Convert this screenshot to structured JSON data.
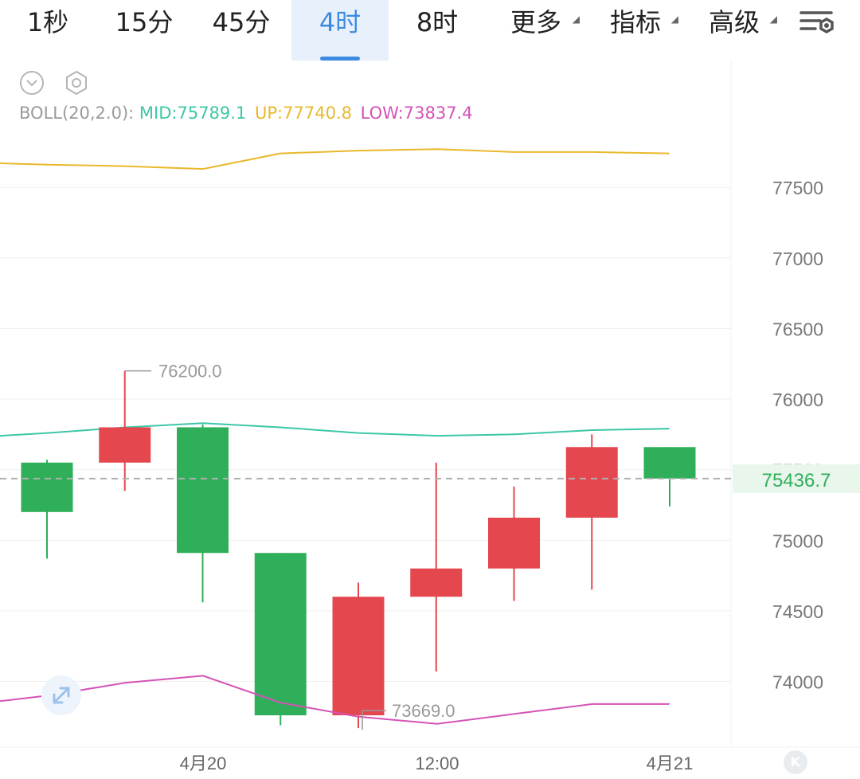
{
  "tabs": [
    {
      "label": "1秒",
      "active": false,
      "has_caret": false
    },
    {
      "label": "15分",
      "active": false,
      "has_caret": false
    },
    {
      "label": "45分",
      "active": false,
      "has_caret": false
    },
    {
      "label": "4时",
      "active": true,
      "has_caret": false
    },
    {
      "label": "8时",
      "active": false,
      "has_caret": false
    },
    {
      "label": "更多",
      "active": false,
      "has_caret": true
    },
    {
      "label": "指标",
      "active": false,
      "has_caret": true
    },
    {
      "label": "高级",
      "active": false,
      "has_caret": true
    }
  ],
  "icons": {
    "settings": "chart-settings-icon",
    "collapse": "chevron-down-circle-icon",
    "indicator_settings": "hexagon-gear-icon",
    "expand": "expand-arrows-icon",
    "k": "k-logo-icon"
  },
  "boll": {
    "name": "BOLL(20,2.0):",
    "mid_label": "MID:75789.1",
    "up_label": "UP:77740.8",
    "low_label": "LOW:73837.4"
  },
  "k_label": "K",
  "colors": {
    "up": "#e5474f",
    "down": "#2faf5a",
    "mid": "#3dc7a7",
    "upper": "#e9b82c",
    "lower": "#d453b8",
    "grid": "#f0f0f0",
    "axis_text": "#777777",
    "accent": "#3d8be0",
    "price_tag_bg": "#e8f6ec",
    "price_tag_text": "#2faf5a"
  },
  "chart_data": {
    "type": "candlestick",
    "ylim": [
      73500,
      78000
    ],
    "y_ticks": [
      74000,
      74500,
      75000,
      75500,
      76000,
      76500,
      77000,
      77500
    ],
    "x_tick_labels": [
      "4月20",
      "12:00",
      "4月21"
    ],
    "candles": [
      {
        "open": 75550,
        "high": 75570,
        "low": 74870,
        "close": 75200
      },
      {
        "open": 75550,
        "high": 76200,
        "low": 75350,
        "close": 75800
      },
      {
        "open": 75800,
        "high": 75820,
        "low": 74560,
        "close": 74910
      },
      {
        "open": 74910,
        "high": 74910,
        "low": 73690,
        "close": 73760
      },
      {
        "open": 73760,
        "high": 74700,
        "low": 73669,
        "close": 74600
      },
      {
        "open": 74600,
        "high": 75550,
        "low": 74070,
        "close": 74800
      },
      {
        "open": 74800,
        "high": 75380,
        "low": 74570,
        "close": 75160
      },
      {
        "open": 75160,
        "high": 75750,
        "low": 74650,
        "close": 75660
      },
      {
        "open": 75660,
        "high": 75660,
        "low": 75240,
        "close": 75436.7
      }
    ],
    "boll_mid": [
      75740,
      75760,
      75800,
      75830,
      75800,
      75760,
      75740,
      75750,
      75780,
      75790,
      75789.1
    ],
    "boll_upper": [
      77670,
      77660,
      77650,
      77630,
      77740,
      77760,
      77770,
      77750,
      77750,
      77740,
      77740.8
    ],
    "boll_lower": [
      73860,
      73900,
      73990,
      74040,
      73850,
      73750,
      73700,
      73770,
      73840,
      73840,
      73837.4
    ],
    "max_annotation": "76200.0",
    "min_annotation": "73669.0",
    "last_price": "75436.7"
  }
}
